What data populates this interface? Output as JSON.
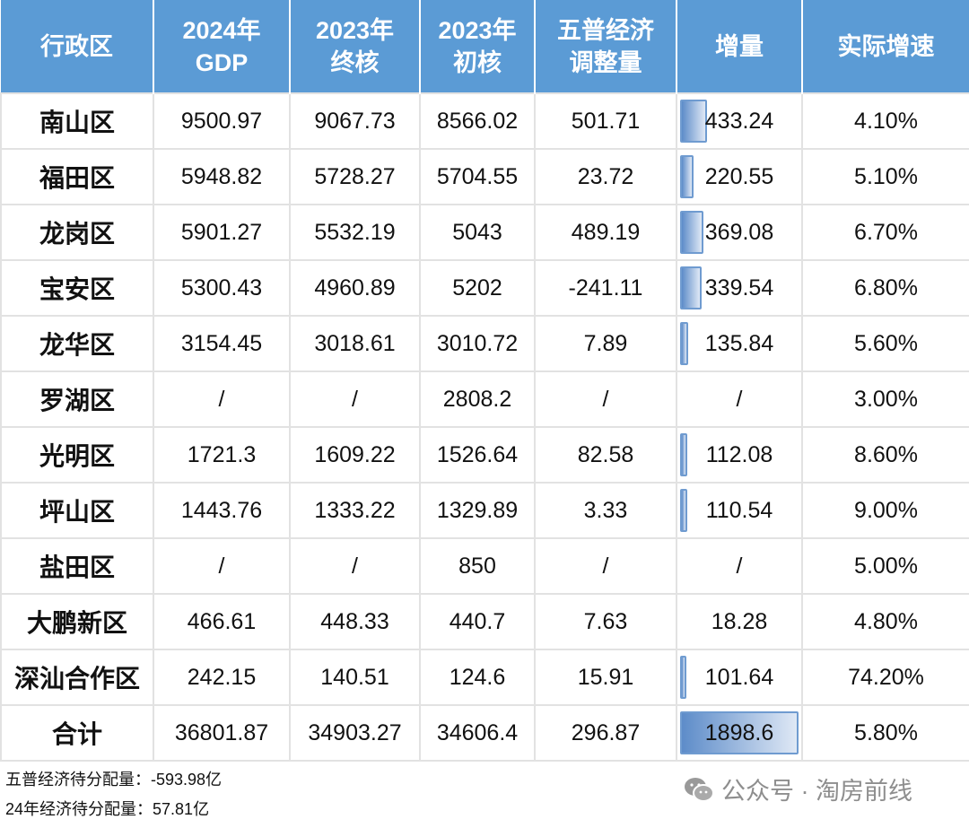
{
  "headers": [
    "行政区",
    "2024年\nGDP",
    "2023年\n终核",
    "2023年\n初核",
    "五普经济\n调整量",
    "增量",
    "实际增速"
  ],
  "rows": [
    [
      "南山区",
      "9500.97",
      "9067.73",
      "8566.02",
      "501.71",
      "433.24",
      "4.10%"
    ],
    [
      "福田区",
      "5948.82",
      "5728.27",
      "5704.55",
      "23.72",
      "220.55",
      "5.10%"
    ],
    [
      "龙岗区",
      "5901.27",
      "5532.19",
      "5043",
      "489.19",
      "369.08",
      "6.70%"
    ],
    [
      "宝安区",
      "5300.43",
      "4960.89",
      "5202",
      "-241.11",
      "339.54",
      "6.80%"
    ],
    [
      "龙华区",
      "3154.45",
      "3018.61",
      "3010.72",
      "7.89",
      "135.84",
      "5.60%"
    ],
    [
      "罗湖区",
      "/",
      "/",
      "2808.2",
      "/",
      "/",
      "3.00%"
    ],
    [
      "光明区",
      "1721.3",
      "1609.22",
      "1526.64",
      "82.58",
      "112.08",
      "8.60%"
    ],
    [
      "坪山区",
      "1443.76",
      "1333.22",
      "1329.89",
      "3.33",
      "110.54",
      "9.00%"
    ],
    [
      "盐田区",
      "/",
      "/",
      "850",
      "/",
      "/",
      "5.00%"
    ],
    [
      "大鹏新区",
      "466.61",
      "448.33",
      "440.7",
      "7.63",
      "18.28",
      "4.80%"
    ],
    [
      "深汕合作区",
      "242.15",
      "140.51",
      "124.6",
      "15.91",
      "101.64",
      "74.20%"
    ],
    [
      "合计",
      "36801.87",
      "34903.27",
      "34606.4",
      "296.87",
      "1898.6",
      "5.80%"
    ]
  ],
  "notes": [
    "五普经济待分配量：-593.98亿",
    "24年经济待分配量：57.81亿"
  ],
  "watermark": "公众号 · 淘房前线",
  "colors": {
    "header": "#5b9bd5",
    "databar": "#5d8cc9"
  }
}
